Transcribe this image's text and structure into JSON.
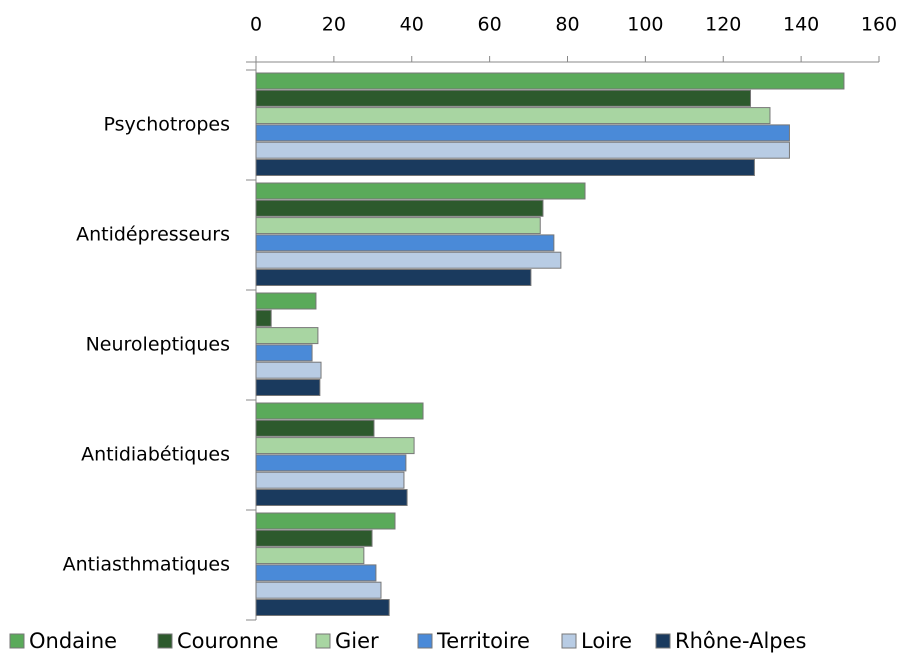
{
  "chart_data": {
    "type": "bar",
    "orientation": "horizontal",
    "categories": [
      "Psychotropes",
      "Antidépresseurs",
      "Neuroleptiques",
      "Antidiabétiques",
      "Antiasthmatiques"
    ],
    "series": [
      {
        "name": "Ondaine",
        "color": "#5aaa5a",
        "values": [
          151,
          84.5,
          15.4,
          42.9,
          35.7
        ]
      },
      {
        "name": "Couronne",
        "color": "#2d5a2d",
        "values": [
          127,
          73.7,
          3.9,
          30.3,
          29.8
        ]
      },
      {
        "name": "Gier",
        "color": "#a8d5a2",
        "values": [
          132,
          73,
          15.9,
          40.6,
          27.7
        ]
      },
      {
        "name": "Territoire",
        "color": "#4a8ad8",
        "values": [
          137,
          76.5,
          14.4,
          38.5,
          30.8
        ]
      },
      {
        "name": "Loire",
        "color": "#b8cce4",
        "values": [
          137,
          78.3,
          16.7,
          38,
          32.1
        ]
      },
      {
        "name": "Rhône-Alpes",
        "color": "#1a3a5e",
        "values": [
          128,
          70.6,
          16.4,
          38.8,
          34.2
        ]
      }
    ],
    "xlim": [
      0,
      160
    ],
    "xticks": [
      0,
      20,
      40,
      60,
      80,
      100,
      120,
      140,
      160
    ],
    "legend": "bottom"
  }
}
